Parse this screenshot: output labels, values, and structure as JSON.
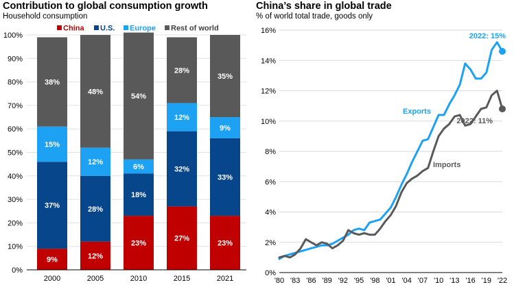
{
  "left_panel": {
    "title": "Contribution to global consumption growth",
    "subtitle": "Household consumption"
  },
  "right_panel": {
    "title": "China’s share in global trade",
    "subtitle": "% of world total trade, goods only"
  },
  "chart_data": [
    {
      "type": "bar",
      "stacked": true,
      "categories": [
        "2000",
        "2005",
        "2010",
        "2015",
        "2021"
      ],
      "y_ticks": [
        "0%",
        "10%",
        "20%",
        "30%",
        "40%",
        "50%",
        "60%",
        "70%",
        "80%",
        "90%",
        "100%"
      ],
      "ylim": [
        0,
        100
      ],
      "legend_position": "top",
      "series": [
        {
          "name": "China",
          "color": "#c00000",
          "values": [
            9,
            12,
            23,
            27,
            23
          ],
          "labels": [
            "9%",
            "12%",
            "23%",
            "27%",
            "23%"
          ]
        },
        {
          "name": "U.S.",
          "color": "#08468c",
          "values": [
            37,
            28,
            18,
            32,
            33
          ],
          "labels": [
            "37%",
            "28%",
            "18%",
            "32%",
            "33%"
          ]
        },
        {
          "name": "Europe",
          "color": "#1da1f2",
          "values": [
            15,
            12,
            6,
            12,
            9
          ],
          "labels": [
            "15%",
            "12%",
            "6%",
            "12%",
            "9%"
          ]
        },
        {
          "name": "Rest of world",
          "color": "#595959",
          "values": [
            38,
            48,
            54,
            28,
            35
          ],
          "labels": [
            "38%",
            "48%",
            "54%",
            "28%",
            "35%"
          ]
        }
      ]
    },
    {
      "type": "line",
      "x_ticks": [
        "'80",
        "'83",
        "'86",
        "'89",
        "'92",
        "'95",
        "'98",
        "'01",
        "'04",
        "'07",
        "'10",
        "'13",
        "'16",
        "'19",
        "'22"
      ],
      "y_ticks": [
        "0%",
        "2%",
        "4%",
        "6%",
        "8%",
        "10%",
        "12%",
        "14%",
        "16%"
      ],
      "xlim": [
        1980,
        2022
      ],
      "ylim": [
        0,
        16
      ],
      "grid": true,
      "series": [
        {
          "name": "Exports",
          "color": "#1da1f2",
          "end_label": "2022: 15%",
          "end_marker": {
            "x": 2022,
            "y": 14.6
          },
          "x": [
            1980,
            1981,
            1982,
            1983,
            1984,
            1985,
            1986,
            1987,
            1988,
            1989,
            1990,
            1991,
            1992,
            1993,
            1994,
            1995,
            1996,
            1997,
            1998,
            1999,
            2000,
            2001,
            2002,
            2003,
            2004,
            2005,
            2006,
            2007,
            2008,
            2009,
            2010,
            2011,
            2012,
            2013,
            2014,
            2015,
            2016,
            2017,
            2018,
            2019,
            2020,
            2021
          ],
          "y": [
            0.9,
            1.1,
            1.2,
            1.3,
            1.4,
            1.5,
            1.6,
            1.7,
            1.8,
            1.8,
            1.9,
            2.1,
            2.3,
            2.5,
            2.8,
            2.9,
            2.8,
            3.3,
            3.4,
            3.5,
            3.9,
            4.3,
            5.0,
            5.8,
            6.5,
            7.3,
            8.0,
            8.7,
            8.8,
            9.6,
            10.4,
            10.4,
            11.1,
            11.7,
            12.4,
            13.8,
            13.4,
            12.8,
            12.8,
            13.2,
            14.7,
            15.2
          ]
        },
        {
          "name": "Imports",
          "color": "#595959",
          "end_label": "2022: 11%",
          "end_marker": {
            "x": 2022,
            "y": 10.8
          },
          "x": [
            1980,
            1981,
            1982,
            1983,
            1984,
            1985,
            1986,
            1987,
            1988,
            1989,
            1990,
            1991,
            1992,
            1993,
            1994,
            1995,
            1996,
            1997,
            1998,
            1999,
            2000,
            2001,
            2002,
            2003,
            2004,
            2005,
            2006,
            2007,
            2008,
            2009,
            2010,
            2011,
            2012,
            2013,
            2014,
            2015,
            2016,
            2017,
            2018,
            2019,
            2020,
            2021
          ],
          "y": [
            1.0,
            1.1,
            1.0,
            1.2,
            1.6,
            2.2,
            2.0,
            1.8,
            2.0,
            1.9,
            1.6,
            1.8,
            2.1,
            2.8,
            2.6,
            2.5,
            2.6,
            2.5,
            2.5,
            2.9,
            3.4,
            3.8,
            4.4,
            5.3,
            5.9,
            6.2,
            6.4,
            6.7,
            6.9,
            8.0,
            9.0,
            9.5,
            9.8,
            10.3,
            10.4,
            9.7,
            9.8,
            10.3,
            10.8,
            10.9,
            11.7,
            12.0
          ]
        }
      ]
    }
  ]
}
